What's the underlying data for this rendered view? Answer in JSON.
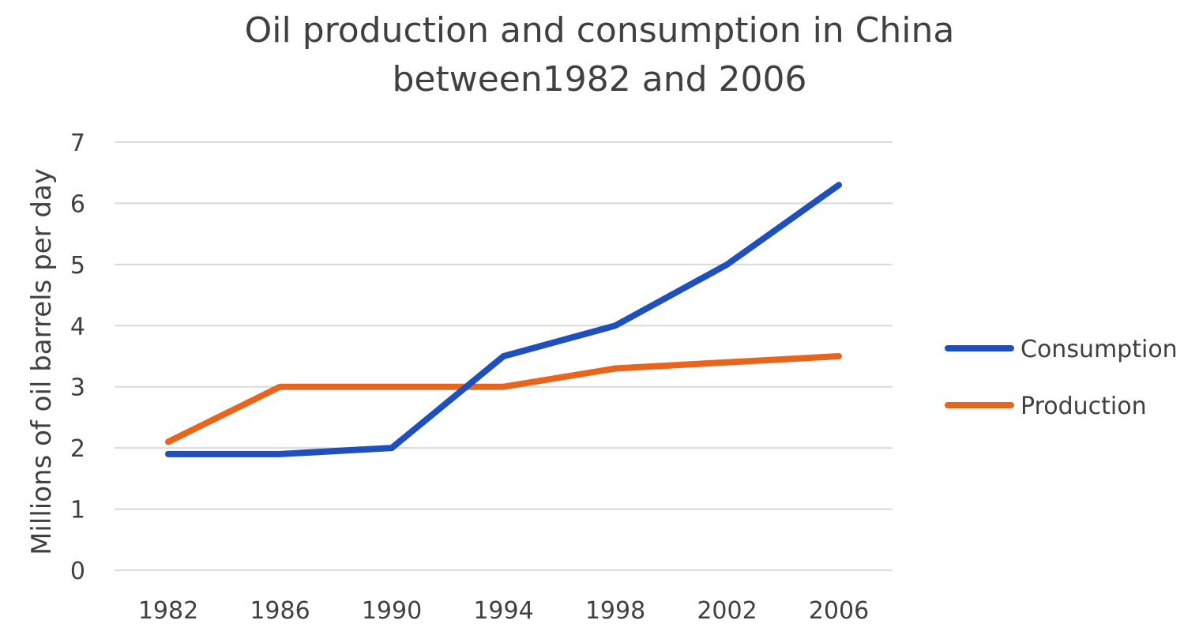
{
  "chart_data": {
    "type": "line",
    "title_lines": [
      "Oil production and consumption in China",
      "between1982 and 2006"
    ],
    "xlabel": "",
    "ylabel": "Millions of oil barrels per day",
    "categories": [
      "1982",
      "1986",
      "1990",
      "1994",
      "1998",
      "2002",
      "2006"
    ],
    "y_ticks": [
      "0",
      "1",
      "2",
      "3",
      "4",
      "5",
      "6",
      "7"
    ],
    "ylim": [
      0,
      7
    ],
    "grid": true,
    "legend_position": "right",
    "series": [
      {
        "name": "Consumption",
        "color": "#1f4fbd",
        "values": [
          1.9,
          1.9,
          2.0,
          3.5,
          4.0,
          5.0,
          6.3
        ]
      },
      {
        "name": "Production",
        "color": "#e8651e",
        "values": [
          2.1,
          3.0,
          3.0,
          3.0,
          3.3,
          3.4,
          3.5
        ]
      }
    ]
  }
}
